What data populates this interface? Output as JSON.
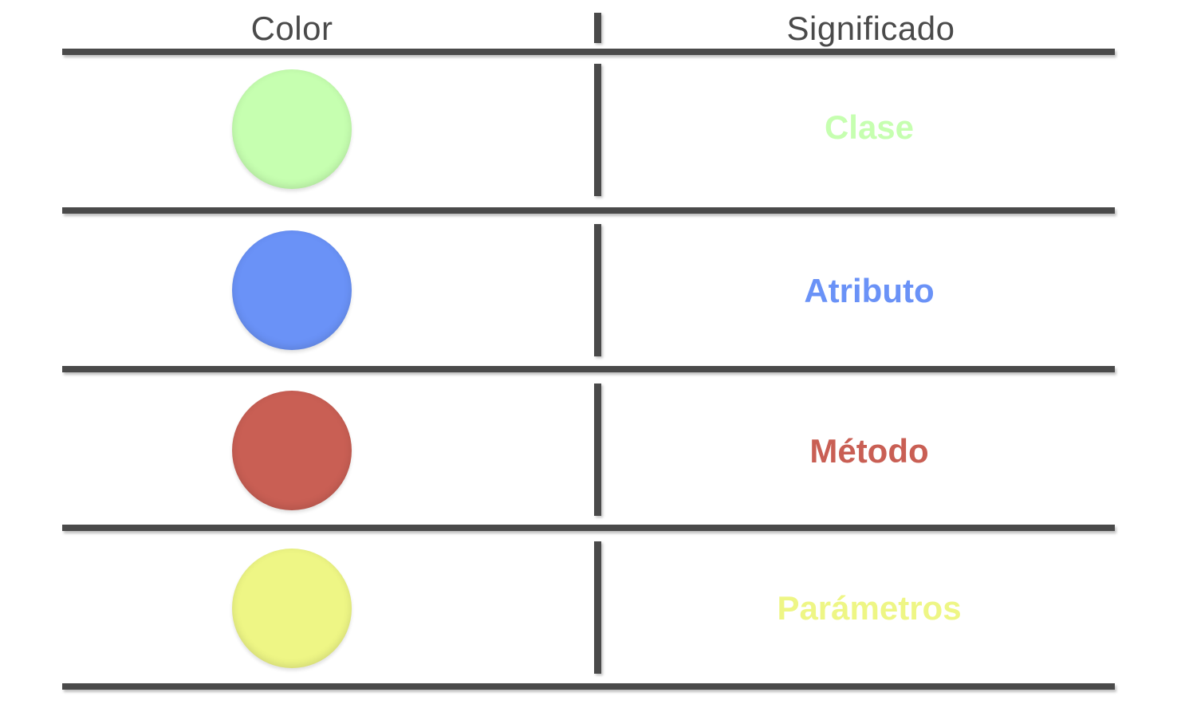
{
  "table": {
    "headers": {
      "color": "Color",
      "meaning": "Significado"
    },
    "rows": [
      {
        "color": "#c6ffb0",
        "label": "Clase"
      },
      {
        "color": "#6a92f7",
        "label": "Atributo"
      },
      {
        "color": "#c95f54",
        "label": "Método"
      },
      {
        "color": "#eef685",
        "label": "Parámetros"
      }
    ]
  }
}
